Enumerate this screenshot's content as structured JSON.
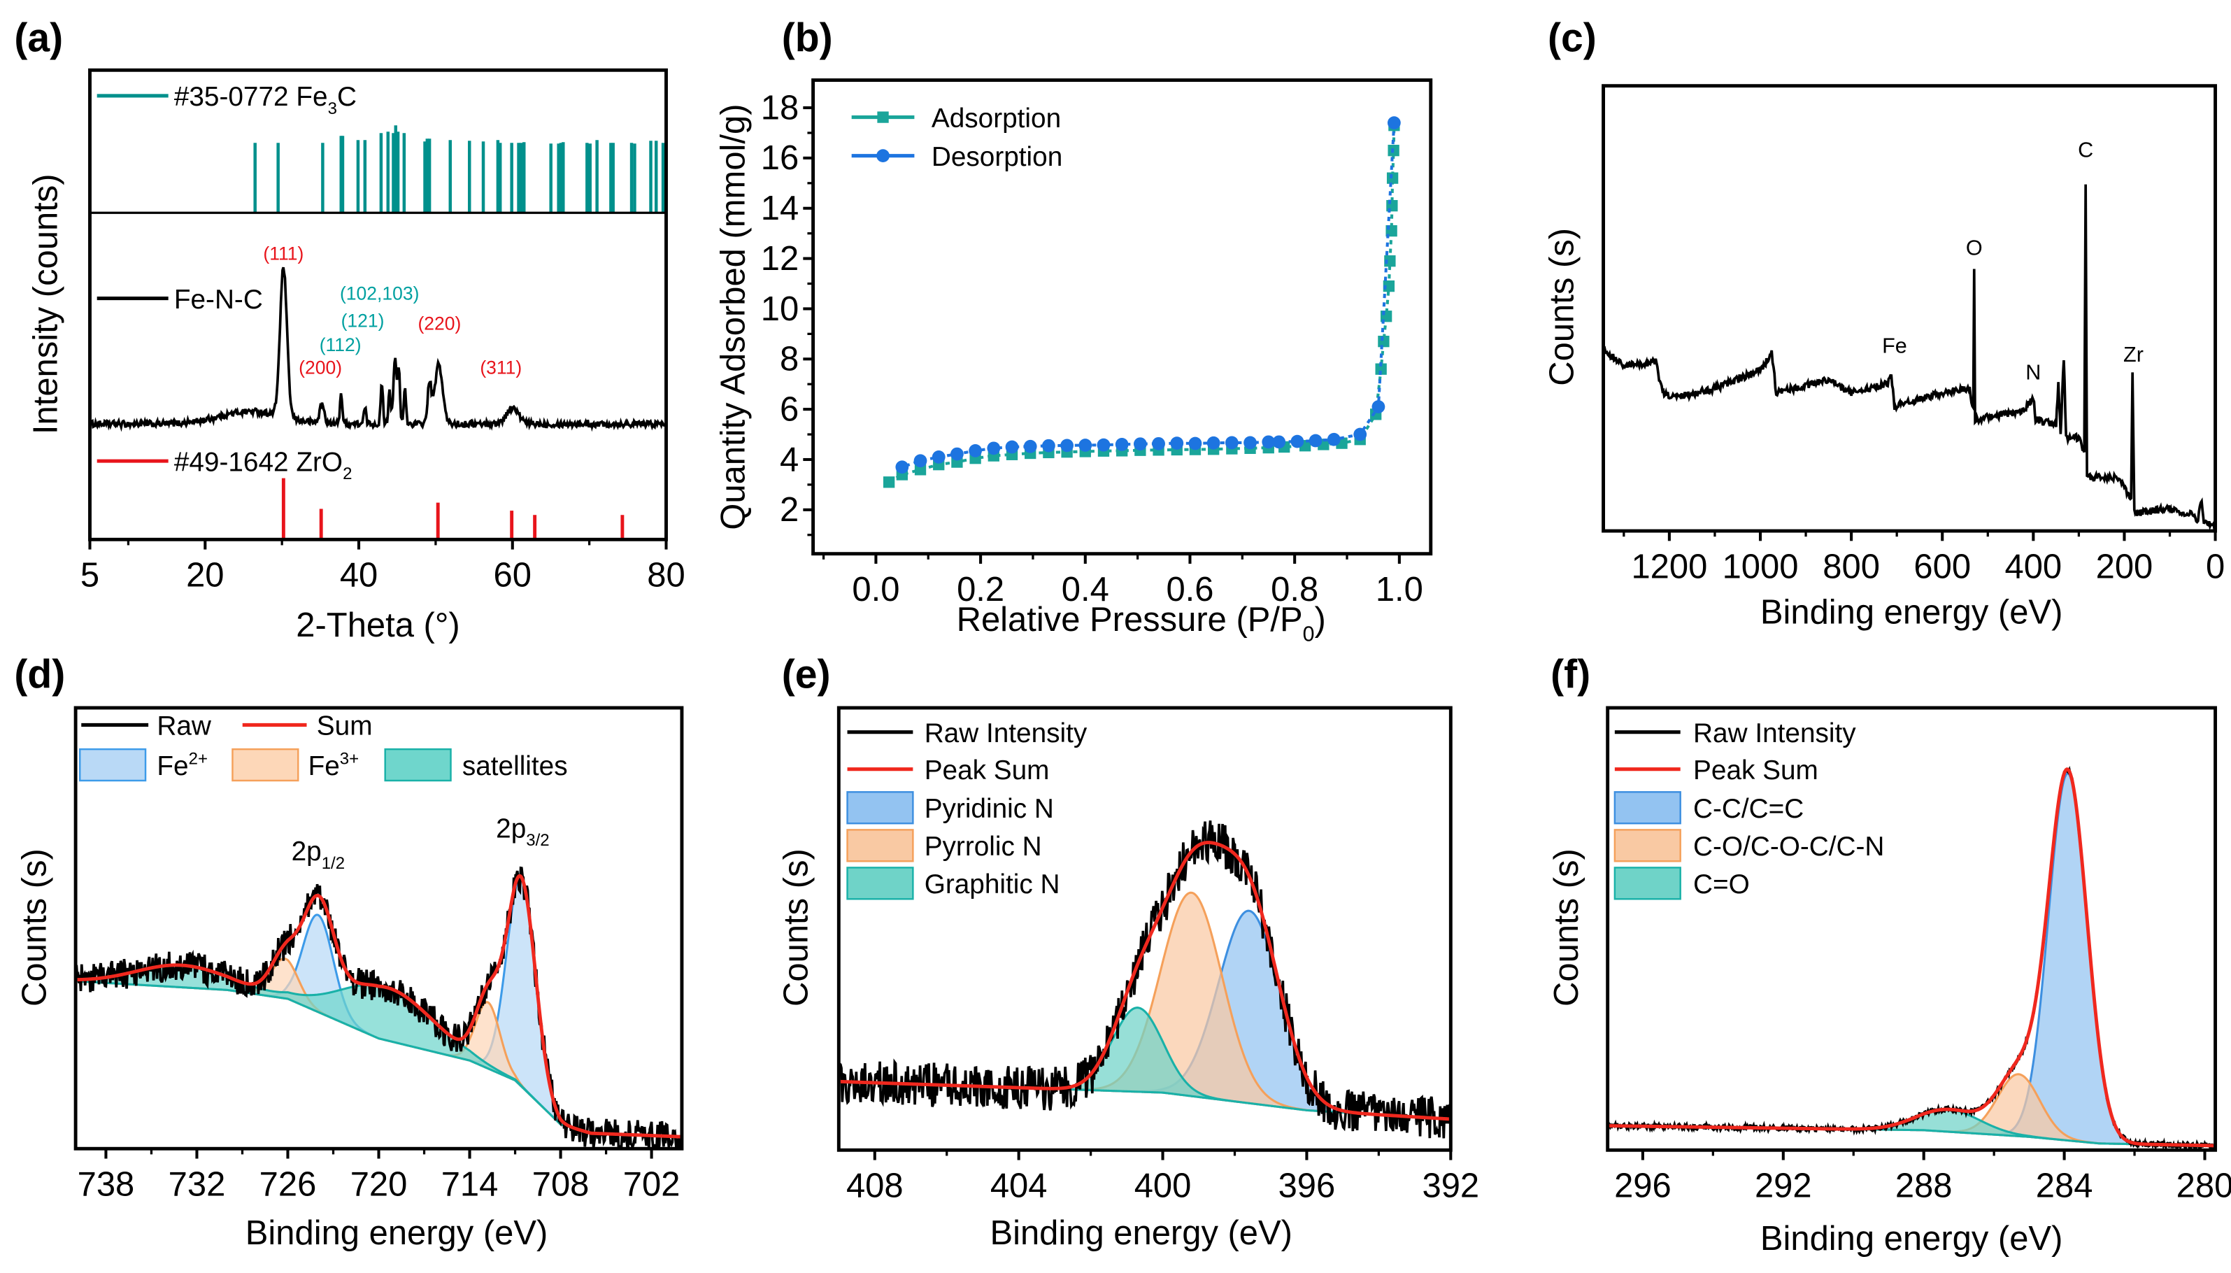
{
  "chart_data": [
    {
      "panel": "(a)",
      "type": "line",
      "xlabel": {
        "main": "2-Theta (°)"
      },
      "ylabel": {
        "main": "Intensity (counts)"
      },
      "xlim": [
        5,
        80
      ],
      "xticks": [
        5,
        20,
        40,
        60,
        80
      ],
      "xtick_labels": [
        "5",
        "20",
        "40",
        "60",
        "80"
      ],
      "xminor": [
        10,
        30,
        50,
        70
      ],
      "reference_top": {
        "legend": {
          "main": "#35-0772 Fe",
          "sub": "3",
          "end": "C"
        },
        "color": "#00908c",
        "positions": [
          26.5,
          29.5,
          35.3,
          37.7,
          37.9,
          39.9,
          40.8,
          42.9,
          43.8,
          44.5,
          44.8,
          45.1,
          45.9,
          48.6,
          48.9,
          49.2,
          51.9,
          54.4,
          56.2,
          58.1,
          58.4,
          59.9,
          60.8,
          61.1,
          61.5,
          65.0,
          66.0,
          66.3,
          66.6,
          69.7,
          70.1,
          71.0,
          72.8,
          73.1,
          75.5,
          75.9,
          78.0,
          78.7,
          79.6
        ],
        "relative_heights": [
          1,
          1,
          1,
          1.1,
          1.1,
          1.04,
          1.04,
          1.14,
          1.16,
          1.14,
          1.25,
          1.16,
          1.14,
          1.02,
          1.06,
          1.06,
          1.04,
          1.03,
          1.02,
          1.04,
          1.0,
          1.0,
          1.0,
          1.0,
          1.01,
          0.99,
          0.99,
          1.0,
          1.01,
          1.0,
          0.99,
          1.04,
          1.0,
          1.0,
          1.0,
          0.99,
          1.03,
          1.03,
          1.0
        ]
      },
      "series": {
        "legend": {
          "main": "Fe-N-C"
        },
        "color": "#000000",
        "baseline_hump": {
          "center": 26,
          "height": 0.08,
          "sigma": 4
        },
        "peaks": [
          {
            "center": 30.2,
            "height": 0.95,
            "sigma": 0.45
          },
          {
            "center": 35.2,
            "height": 0.12,
            "sigma": 0.3
          },
          {
            "center": 37.7,
            "height": 0.2,
            "sigma": 0.15
          },
          {
            "center": 40.8,
            "height": 0.1,
            "sigma": 0.15
          },
          {
            "center": 43.0,
            "height": 0.25,
            "sigma": 0.15
          },
          {
            "center": 44.0,
            "height": 0.22,
            "sigma": 0.15
          },
          {
            "center": 44.7,
            "height": 0.42,
            "sigma": 0.2
          },
          {
            "center": 45.2,
            "height": 0.35,
            "sigma": 0.15
          },
          {
            "center": 46.0,
            "height": 0.22,
            "sigma": 0.15
          },
          {
            "center": 49.2,
            "height": 0.25,
            "sigma": 0.25
          },
          {
            "center": 50.4,
            "height": 0.38,
            "sigma": 0.5
          },
          {
            "center": 60.0,
            "height": 0.1,
            "sigma": 0.8
          }
        ],
        "noise": 0.02
      },
      "reference_bottom": {
        "legend": {
          "main": "#49-1642 ZrO",
          "sub": "2"
        },
        "color": "#e8141b",
        "positions": [
          30.2,
          35.1,
          50.3,
          59.9,
          62.9,
          74.3
        ],
        "relative_heights": [
          1.0,
          0.5,
          0.6,
          0.47,
          0.4,
          0.4
        ]
      },
      "annotations": [
        {
          "text": "(111)",
          "x": 30.2,
          "color": "#e8141b"
        },
        {
          "text": "(200)",
          "x": 35.0,
          "color": "#e8141b"
        },
        {
          "text": "(112)",
          "x": 37.6,
          "color": "#00a0a0"
        },
        {
          "text": "(121)",
          "x": 40.5,
          "color": "#00a0a0"
        },
        {
          "text": "(102,103)",
          "x": 42.7,
          "color": "#00a0a0"
        },
        {
          "text": "(220)",
          "x": 50.5,
          "color": "#e8141b"
        },
        {
          "text": "(311)",
          "x": 58.5,
          "color": "#e8141b"
        }
      ]
    },
    {
      "panel": "(b)",
      "type": "scatter",
      "xlabel": {
        "main": "Relative Pressure (P/P",
        "sub": "0",
        "end": ")"
      },
      "ylabel": {
        "main": "Quantity Adsorbed (mmol/g)"
      },
      "xlim": [
        -0.12,
        1.06
      ],
      "ylim": [
        0.25,
        19.1
      ],
      "xticks": [
        0,
        0.2,
        0.4,
        0.6,
        0.8,
        1.0
      ],
      "xtick_labels": [
        "0.0",
        "0.2",
        "0.4",
        "0.6",
        "0.8",
        "1.0"
      ],
      "xminor": [
        -0.1,
        0.1,
        0.3,
        0.5,
        0.7,
        0.9
      ],
      "yticks": [
        2,
        4,
        6,
        8,
        10,
        12,
        14,
        16,
        18
      ],
      "ytick_labels": [
        "2",
        "4",
        "6",
        "8",
        "10",
        "12",
        "14",
        "16",
        "18"
      ],
      "yminor": [
        1,
        3,
        5,
        7,
        9,
        11,
        13,
        15,
        17
      ],
      "legend_position": "top-left",
      "series": [
        {
          "name": "Adsorption",
          "color": "#1aa59a",
          "marker": "square",
          "x": [
            0.025,
            0.05,
            0.085,
            0.12,
            0.155,
            0.19,
            0.225,
            0.26,
            0.295,
            0.33,
            0.365,
            0.4,
            0.435,
            0.47,
            0.505,
            0.54,
            0.575,
            0.61,
            0.645,
            0.68,
            0.715,
            0.75,
            0.78,
            0.82,
            0.855,
            0.89,
            0.925,
            0.955,
            0.965,
            0.97,
            0.975,
            0.98,
            0.982,
            0.985,
            0.986,
            0.987,
            0.989,
            0.99
          ],
          "y": [
            3.1,
            3.4,
            3.6,
            3.8,
            3.9,
            4.05,
            4.15,
            4.2,
            4.25,
            4.28,
            4.3,
            4.32,
            4.34,
            4.35,
            4.37,
            4.38,
            4.39,
            4.4,
            4.41,
            4.43,
            4.45,
            4.47,
            4.5,
            4.55,
            4.6,
            4.65,
            4.8,
            5.8,
            7.6,
            8.7,
            9.7,
            10.9,
            11.9,
            13.1,
            14.1,
            15.2,
            16.3,
            17.3
          ]
        },
        {
          "name": "Desorption",
          "color": "#1d74e0",
          "marker": "circle",
          "x": [
            0.99,
            0.96,
            0.925,
            0.875,
            0.84,
            0.805,
            0.77,
            0.75,
            0.715,
            0.68,
            0.645,
            0.61,
            0.575,
            0.54,
            0.505,
            0.47,
            0.435,
            0.4,
            0.365,
            0.33,
            0.295,
            0.26,
            0.225,
            0.19,
            0.155,
            0.12,
            0.085,
            0.05
          ],
          "y": [
            17.4,
            6.1,
            5.0,
            4.8,
            4.75,
            4.72,
            4.7,
            4.7,
            4.67,
            4.67,
            4.66,
            4.64,
            4.65,
            4.63,
            4.62,
            4.6,
            4.58,
            4.57,
            4.56,
            4.55,
            4.52,
            4.5,
            4.45,
            4.35,
            4.22,
            4.1,
            3.95,
            3.7
          ]
        }
      ]
    },
    {
      "panel": "(c)",
      "type": "line",
      "xlabel": {
        "main": "Binding energy (eV)"
      },
      "ylabel": {
        "main": "Counts (s)"
      },
      "xlim": [
        1345,
        0
      ],
      "xticks": [
        1200,
        1000,
        800,
        600,
        400,
        200,
        0
      ],
      "xtick_labels": [
        "1200",
        "1000",
        "800",
        "600",
        "400",
        "200",
        "0"
      ],
      "xminor": [
        1300,
        1100,
        900,
        700,
        500,
        300,
        100
      ],
      "series": {
        "color": "#000000",
        "noise": 0.008,
        "points": [
          [
            1345,
            0.41
          ],
          [
            1300,
            0.37
          ],
          [
            1230,
            0.38
          ],
          [
            1215,
            0.31
          ],
          [
            1190,
            0.3
          ],
          [
            1100,
            0.32
          ],
          [
            1000,
            0.36
          ],
          [
            975,
            0.4
          ],
          [
            965,
            0.31
          ],
          [
            850,
            0.34
          ],
          [
            800,
            0.31
          ],
          [
            720,
            0.33
          ],
          [
            712,
            0.35
          ],
          [
            705,
            0.28
          ],
          [
            600,
            0.31
          ],
          [
            540,
            0.32
          ],
          [
            532,
            0.27
          ],
          [
            530,
            0.59
          ],
          [
            528,
            0.25
          ],
          [
            420,
            0.27
          ],
          [
            400,
            0.3
          ],
          [
            395,
            0.25
          ],
          [
            350,
            0.24
          ],
          [
            345,
            0.33
          ],
          [
            340,
            0.22
          ],
          [
            333,
            0.39
          ],
          [
            328,
            0.21
          ],
          [
            300,
            0.21
          ],
          [
            288,
            0.17
          ],
          [
            285,
            0.78
          ],
          [
            282,
            0.12
          ],
          [
            220,
            0.12
          ],
          [
            200,
            0.1
          ],
          [
            185,
            0.07
          ],
          [
            182,
            0.35
          ],
          [
            178,
            0.04
          ],
          [
            100,
            0.05
          ],
          [
            60,
            0.03
          ],
          [
            55,
            0.05
          ],
          [
            40,
            0.02
          ],
          [
            30,
            0.07
          ],
          [
            25,
            0.02
          ],
          [
            0,
            0.01
          ]
        ]
      },
      "annotations": [
        {
          "text": "Fe",
          "x": 705,
          "y": 0.4
        },
        {
          "text": "O",
          "x": 530,
          "y": 0.62
        },
        {
          "text": "N",
          "x": 400,
          "y": 0.34
        },
        {
          "text": "C",
          "x": 285,
          "y": 0.84
        },
        {
          "text": "Zr",
          "x": 180,
          "y": 0.38
        }
      ]
    },
    {
      "panel": "(d)",
      "type": "area",
      "xlabel": {
        "main": "Binding energy (eV)"
      },
      "ylabel": {
        "main": "Counts (s)"
      },
      "xlim": [
        740,
        700
      ],
      "xticks": [
        738,
        732,
        726,
        720,
        714,
        708,
        702
      ],
      "xtick_labels": [
        "738",
        "732",
        "726",
        "720",
        "714",
        "708",
        "702"
      ],
      "xminor": [
        735,
        729,
        723,
        717,
        711,
        705
      ],
      "background": [
        [
          740,
          0.38
        ],
        [
          730,
          0.36
        ],
        [
          726,
          0.34
        ],
        [
          720,
          0.25
        ],
        [
          714,
          0.2
        ],
        [
          711,
          0.155
        ],
        [
          708,
          0.055
        ],
        [
          706,
          0.035
        ],
        [
          700,
          0.027
        ]
      ],
      "raw": {
        "legend": "Raw",
        "color": "#000000",
        "noise": 0.035
      },
      "sum": {
        "legend": "Sum",
        "color": "#f0281e"
      },
      "components": [
        {
          "legend": {
            "main": "Fe",
            "sup": "2+"
          },
          "stroke": "#3d9be9",
          "fill": "#b9d9f6",
          "peaks": [
            {
              "center": 710.6,
              "height": 0.47,
              "sigma": 0.95
            },
            {
              "center": 724.0,
              "height": 0.22,
              "sigma": 1.0
            }
          ]
        },
        {
          "legend": {
            "main": "Fe",
            "sup": "3+"
          },
          "stroke": "#f5a05a",
          "fill": "#fdd7b8",
          "peaks": [
            {
              "center": 712.8,
              "height": 0.15,
              "sigma": 0.8
            },
            {
              "center": 726.2,
              "height": 0.09,
              "sigma": 0.9
            }
          ]
        },
        {
          "legend": {
            "main": "satellites"
          },
          "stroke": "#19b1a8",
          "fill": "#6fd6cc",
          "peaks": [
            {
              "center": 719.5,
              "height": 0.12,
              "sigma": 3.0
            },
            {
              "center": 733.0,
              "height": 0.05,
              "sigma": 3.0
            }
          ]
        }
      ],
      "annotations": [
        {
          "main": "2p",
          "sub": "1/2",
          "x": 724.0
        },
        {
          "main": "2p",
          "sub": "3/2",
          "x": 710.5
        }
      ]
    },
    {
      "panel": "(e)",
      "type": "area",
      "xlabel": {
        "main": "Binding energy (eV)"
      },
      "ylabel": {
        "main": "Counts (s)"
      },
      "xlim": [
        409,
        392
      ],
      "xticks": [
        408,
        404,
        400,
        396,
        392
      ],
      "xtick_labels": [
        "408",
        "404",
        "400",
        "396",
        "392"
      ],
      "xminor": [
        406,
        402,
        398,
        394
      ],
      "background": [
        [
          409,
          0.155
        ],
        [
          400,
          0.13
        ],
        [
          396,
          0.09
        ],
        [
          392,
          0.07
        ]
      ],
      "raw": {
        "legend": "Raw Intensity",
        "color": "#000000",
        "noise": 0.05
      },
      "sum": {
        "legend": "Peak Sum",
        "color": "#f0281e"
      },
      "components": [
        {
          "legend": {
            "main": "Pyridinic N"
          },
          "stroke": "#3d8fe0",
          "fill": "#93c3f1",
          "peaks": [
            {
              "center": 397.6,
              "height": 0.435,
              "sigma": 0.85
            }
          ]
        },
        {
          "legend": {
            "main": "Pyrrolic N"
          },
          "stroke": "#f5a05a",
          "fill": "#f9c9a3",
          "peaks": [
            {
              "center": 399.2,
              "height": 0.46,
              "sigma": 0.85
            }
          ]
        },
        {
          "legend": {
            "main": "Graphitic N"
          },
          "stroke": "#19b1a8",
          "fill": "#6fd3c8",
          "peaks": [
            {
              "center": 400.7,
              "height": 0.19,
              "sigma": 0.7
            }
          ]
        }
      ]
    },
    {
      "panel": "(f)",
      "type": "area",
      "xlabel": {
        "main": "Binding energy (eV)"
      },
      "ylabel": {
        "main": "Counts (s)"
      },
      "xlim": [
        297,
        279.7
      ],
      "xticks": [
        296,
        292,
        288,
        284,
        280
      ],
      "xtick_labels": [
        "296",
        "292",
        "288",
        "284",
        "280"
      ],
      "xminor": [
        294,
        290,
        286,
        282
      ],
      "background": [
        [
          297,
          0.055
        ],
        [
          288,
          0.045
        ],
        [
          285,
          0.03
        ],
        [
          283,
          0.015
        ],
        [
          279.7,
          0.01
        ]
      ],
      "raw": {
        "legend": "Raw Intensity",
        "color": "#000000",
        "noise": 0.006
      },
      "sum": {
        "legend": "Peak Sum",
        "color": "#f0281e"
      },
      "components": [
        {
          "legend": {
            "main": "C-C/C=C"
          },
          "stroke": "#3d8fe0",
          "fill": "#93c3f1",
          "peaks": [
            {
              "center": 283.9,
              "height": 0.83,
              "sigma": 0.55
            }
          ]
        },
        {
          "legend": {
            "main": "C-O/C-O-C/C-N"
          },
          "stroke": "#f5a05a",
          "fill": "#f9c9a3",
          "peaks": [
            {
              "center": 285.3,
              "height": 0.14,
              "sigma": 0.6
            }
          ]
        },
        {
          "legend": {
            "main": "C=O"
          },
          "stroke": "#19b1a8",
          "fill": "#6fd3c8",
          "peaks": [
            {
              "center": 287.3,
              "height": 0.05,
              "sigma": 0.9
            }
          ]
        }
      ]
    }
  ]
}
